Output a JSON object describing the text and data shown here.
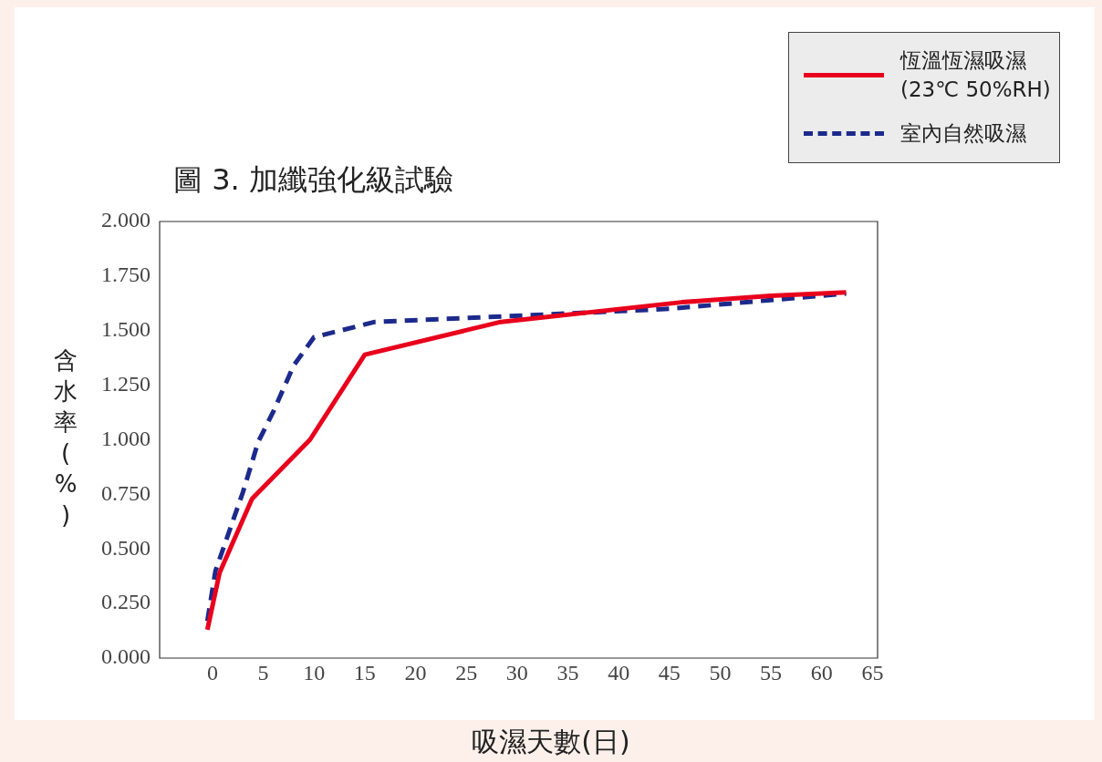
{
  "chart_data": {
    "type": "line",
    "title": "圖 3. 加纖強化級試驗",
    "xlabel": "吸濕天數(日)",
    "ylabel": "含水率(%)",
    "xlim": [
      -5.2,
      65.5
    ],
    "xticks": [
      0,
      5,
      10,
      15,
      20,
      25,
      30,
      35,
      40,
      45,
      50,
      55,
      60,
      65
    ],
    "ylim": [
      0,
      2
    ],
    "yticks": [
      {
        "value": 0,
        "label": "0.000"
      },
      {
        "value": 0.25,
        "label": "0.250"
      },
      {
        "value": 0.5,
        "label": "0.500"
      },
      {
        "value": 0.75,
        "label": "0.750"
      },
      {
        "value": 1,
        "label": "1.000"
      },
      {
        "value": 1.25,
        "label": "1.250"
      },
      {
        "value": 1.5,
        "label": "1.500"
      },
      {
        "value": 1.75,
        "label": "1.750"
      },
      {
        "value": 2,
        "label": "2.000"
      }
    ],
    "grid": false,
    "legend": "top right",
    "marker": "none",
    "series": [
      {
        "name": "恆溫恆濕吸濕 (23℃ 50%RH)",
        "color": "#e8001c",
        "line_style": "solid",
        "x": [
          -0.5,
          0.7,
          3.9,
          9.6,
          15,
          28.4,
          46.2,
          55,
          62.4
        ],
        "values": [
          0.13,
          0.39,
          0.73,
          1.0,
          1.39,
          1.54,
          1.63,
          1.66,
          1.675
        ]
      },
      {
        "name": "室內自然吸濕",
        "color": "#1c2a8c",
        "line_style": "dashed",
        "x": [
          -0.5,
          0.3,
          3,
          4.5,
          6,
          8,
          10,
          16,
          31,
          45,
          62.4
        ],
        "values": [
          0.17,
          0.4,
          0.76,
          0.99,
          1.13,
          1.34,
          1.47,
          1.54,
          1.57,
          1.6,
          1.67
        ]
      }
    ]
  }
}
